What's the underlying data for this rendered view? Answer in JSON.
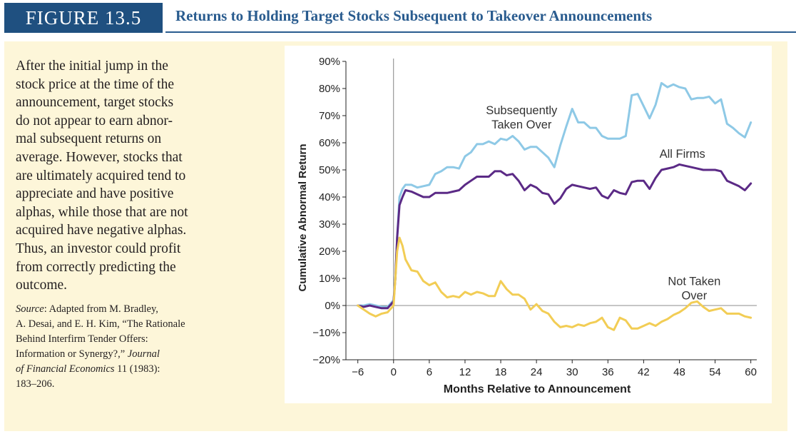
{
  "header": {
    "figure_label": "FIGURE 13.5",
    "title": "Returns to Holding Target Stocks Subsequent to Takeover Announcements"
  },
  "caption": {
    "text": "After the initial jump in the stock price at the time of the announcement, target stocks do not appear to earn abnor-mal subsequent returns on average. However, stocks that are ultimately acquired tend to appreciate and have positive alphas, while those that are not acquired have negative alphas. Thus, an investor could profit from correctly predicting the outcome.",
    "lines": [
      "After the initial jump in the",
      "stock price at the time of the",
      "announcement, target stocks",
      "do not appear to earn abnor-",
      "mal subsequent returns on",
      "average. However, stocks that",
      "are ultimately acquired tend to",
      "appreciate and have positive",
      "alphas, while those that are not",
      "acquired have negative alphas.",
      "Thus, an investor could profit",
      "from correctly predicting the",
      "outcome."
    ]
  },
  "source": {
    "label": "Source",
    "lines": [
      ": Adapted from M. Bradley,",
      "A. Desai, and E. H. Kim, “The Rationale",
      "Behind Interfirm Tender Offers:",
      "Information or Synergy?,” ",
      "of Financial Economics 11 (1983):",
      "183–206."
    ],
    "journal_1": "Journal",
    "journal_2": "of Financial Economics"
  },
  "colors": {
    "header_bg": "#1f5080",
    "title": "#2a5c8f",
    "panel_bg": "#fdf6d9",
    "subsequently": "#8ec9e6",
    "all_firms": "#5b2a86",
    "not_taken": "#f2cd55"
  },
  "chart_data": {
    "type": "line",
    "xlabel": "Months Relative to Announcement",
    "ylabel": "Cumulative Abnormal Return",
    "xlim": [
      -8,
      61
    ],
    "ylim": [
      -20,
      90
    ],
    "x_ticks": [
      -6,
      0,
      6,
      12,
      18,
      24,
      30,
      36,
      42,
      48,
      54,
      60
    ],
    "x_tick_labels": [
      "−6",
      "0",
      "6",
      "12",
      "18",
      "24",
      "30",
      "36",
      "42",
      "48",
      "54",
      "60"
    ],
    "y_ticks": [
      -20,
      -10,
      0,
      10,
      20,
      30,
      40,
      50,
      60,
      70,
      80,
      90
    ],
    "y_tick_labels": [
      "−20%",
      "−10%",
      "0%",
      "10%",
      "20%",
      "30%",
      "40%",
      "50%",
      "60%",
      "70%",
      "80%",
      "90%"
    ],
    "grid": false,
    "series": [
      {
        "name": "Subsequently Taken Over",
        "label_lines": [
          "Subsequently",
          "Taken Over"
        ],
        "label_pos": [
          21.5,
          70.5
        ],
        "color": "#8ec9e6",
        "points": [
          [
            -6,
            0
          ],
          [
            -5,
            0
          ],
          [
            -4,
            0.5
          ],
          [
            -3,
            0
          ],
          [
            -2,
            -0.5
          ],
          [
            -1,
            -0.5
          ],
          [
            0,
            2
          ],
          [
            0.3,
            10
          ],
          [
            0.6,
            25
          ],
          [
            1,
            40
          ],
          [
            1.5,
            43
          ],
          [
            2,
            44.5
          ],
          [
            3,
            44.5
          ],
          [
            4,
            43.5
          ],
          [
            5,
            44
          ],
          [
            6,
            44.5
          ],
          [
            7,
            48.5
          ],
          [
            8,
            49.5
          ],
          [
            9,
            51
          ],
          [
            10,
            51
          ],
          [
            11,
            50.5
          ],
          [
            12,
            55
          ],
          [
            13,
            56.5
          ],
          [
            14,
            59.5
          ],
          [
            15,
            59.5
          ],
          [
            16,
            60.5
          ],
          [
            17,
            59.5
          ],
          [
            18,
            61.5
          ],
          [
            19,
            61
          ],
          [
            20,
            62.5
          ],
          [
            21,
            60.5
          ],
          [
            22,
            57.5
          ],
          [
            23,
            58.5
          ],
          [
            24,
            58.5
          ],
          [
            25,
            56.5
          ],
          [
            26,
            54.5
          ],
          [
            27,
            51
          ],
          [
            28,
            59
          ],
          [
            29,
            66
          ],
          [
            30,
            72.5
          ],
          [
            31,
            67.5
          ],
          [
            32,
            67.5
          ],
          [
            33,
            65.5
          ],
          [
            34,
            65.5
          ],
          [
            35,
            62.5
          ],
          [
            36,
            61.5
          ],
          [
            37,
            61.5
          ],
          [
            38,
            61.5
          ],
          [
            39,
            62.5
          ],
          [
            40,
            77.5
          ],
          [
            41,
            78
          ],
          [
            42,
            73.5
          ],
          [
            43,
            69
          ],
          [
            44,
            74
          ],
          [
            45,
            82
          ],
          [
            46,
            80.5
          ],
          [
            47,
            81.5
          ],
          [
            48,
            80.5
          ],
          [
            49,
            80
          ],
          [
            50,
            76
          ],
          [
            51,
            76.5
          ],
          [
            52,
            76.5
          ],
          [
            53,
            77
          ],
          [
            54,
            74.5
          ],
          [
            55,
            76
          ],
          [
            56,
            67
          ],
          [
            57,
            65.5
          ],
          [
            58,
            63.5
          ],
          [
            59,
            62
          ],
          [
            60,
            67.5
          ]
        ]
      },
      {
        "name": "All Firms",
        "label_lines": [
          "All Firms"
        ],
        "label_pos": [
          48.5,
          54.5
        ],
        "color": "#5b2a86",
        "points": [
          [
            -6,
            0
          ],
          [
            -5,
            -0.5
          ],
          [
            -4,
            0
          ],
          [
            -3,
            -0.5
          ],
          [
            -2,
            -1
          ],
          [
            -1,
            -1
          ],
          [
            0,
            1.5
          ],
          [
            0.3,
            10
          ],
          [
            0.6,
            25
          ],
          [
            1,
            37
          ],
          [
            1.5,
            40
          ],
          [
            2,
            42.5
          ],
          [
            3,
            42
          ],
          [
            4,
            41
          ],
          [
            5,
            40
          ],
          [
            6,
            40
          ],
          [
            7,
            41.5
          ],
          [
            8,
            41.5
          ],
          [
            9,
            41.5
          ],
          [
            10,
            42
          ],
          [
            11,
            42.5
          ],
          [
            12,
            44.5
          ],
          [
            13,
            46
          ],
          [
            14,
            47.5
          ],
          [
            15,
            47.5
          ],
          [
            16,
            47.5
          ],
          [
            17,
            49.5
          ],
          [
            18,
            49.5
          ],
          [
            19,
            48
          ],
          [
            20,
            48.5
          ],
          [
            21,
            46
          ],
          [
            22,
            42.5
          ],
          [
            23,
            44.5
          ],
          [
            24,
            43.5
          ],
          [
            25,
            41.5
          ],
          [
            26,
            41
          ],
          [
            27,
            37.5
          ],
          [
            28,
            39.5
          ],
          [
            29,
            43
          ],
          [
            30,
            44.5
          ],
          [
            31,
            44
          ],
          [
            32,
            43.5
          ],
          [
            33,
            43
          ],
          [
            34,
            43.5
          ],
          [
            35,
            40.5
          ],
          [
            36,
            39.5
          ],
          [
            37,
            42.5
          ],
          [
            38,
            41.5
          ],
          [
            39,
            41
          ],
          [
            40,
            45.5
          ],
          [
            41,
            46
          ],
          [
            42,
            46
          ],
          [
            43,
            43
          ],
          [
            44,
            47
          ],
          [
            45,
            50
          ],
          [
            46,
            50.5
          ],
          [
            47,
            51
          ],
          [
            48,
            52
          ],
          [
            49,
            51.5
          ],
          [
            50,
            51
          ],
          [
            51,
            50.5
          ],
          [
            52,
            50
          ],
          [
            53,
            50
          ],
          [
            54,
            50
          ],
          [
            55,
            49.5
          ],
          [
            56,
            46
          ],
          [
            57,
            45
          ],
          [
            58,
            44
          ],
          [
            59,
            42.5
          ],
          [
            60,
            45
          ]
        ]
      },
      {
        "name": "Not Taken Over",
        "label_lines": [
          "Not Taken",
          "Over"
        ],
        "label_pos": [
          50.5,
          7.5
        ],
        "color": "#f2cd55",
        "points": [
          [
            -6,
            0
          ],
          [
            -5,
            -1.5
          ],
          [
            -4,
            -3
          ],
          [
            -3,
            -4
          ],
          [
            -2,
            -3
          ],
          [
            -1,
            -2.5
          ],
          [
            0,
            0
          ],
          [
            0.3,
            10
          ],
          [
            0.6,
            20
          ],
          [
            1,
            25
          ],
          [
            1.5,
            22
          ],
          [
            2,
            17
          ],
          [
            3,
            13
          ],
          [
            4,
            12.5
          ],
          [
            5,
            9
          ],
          [
            6,
            7.5
          ],
          [
            7,
            8.5
          ],
          [
            8,
            5
          ],
          [
            9,
            3
          ],
          [
            10,
            3.5
          ],
          [
            11,
            3
          ],
          [
            12,
            5
          ],
          [
            13,
            4
          ],
          [
            14,
            5
          ],
          [
            15,
            4.5
          ],
          [
            16,
            3.5
          ],
          [
            17,
            3.5
          ],
          [
            18,
            9
          ],
          [
            19,
            6
          ],
          [
            20,
            4
          ],
          [
            21,
            4
          ],
          [
            22,
            2.5
          ],
          [
            23,
            -1.5
          ],
          [
            24,
            0.5
          ],
          [
            25,
            -2
          ],
          [
            26,
            -3
          ],
          [
            27,
            -6
          ],
          [
            28,
            -8
          ],
          [
            29,
            -7.5
          ],
          [
            30,
            -8
          ],
          [
            31,
            -7
          ],
          [
            32,
            -7.5
          ],
          [
            33,
            -6.5
          ],
          [
            34,
            -6
          ],
          [
            35,
            -4.5
          ],
          [
            36,
            -8
          ],
          [
            37,
            -9
          ],
          [
            38,
            -4.5
          ],
          [
            39,
            -5.5
          ],
          [
            40,
            -8.5
          ],
          [
            41,
            -8.5
          ],
          [
            42,
            -7.5
          ],
          [
            43,
            -6.5
          ],
          [
            44,
            -7.5
          ],
          [
            45,
            -6
          ],
          [
            46,
            -5
          ],
          [
            47,
            -3.5
          ],
          [
            48,
            -2.5
          ],
          [
            49,
            -1
          ],
          [
            50,
            1
          ],
          [
            51,
            1.5
          ],
          [
            52,
            -0.5
          ],
          [
            53,
            -2
          ],
          [
            54,
            -1.5
          ],
          [
            55,
            -1
          ],
          [
            56,
            -3
          ],
          [
            57,
            -3
          ],
          [
            58,
            -3
          ],
          [
            59,
            -4
          ],
          [
            60,
            -4.5
          ]
        ]
      }
    ]
  }
}
